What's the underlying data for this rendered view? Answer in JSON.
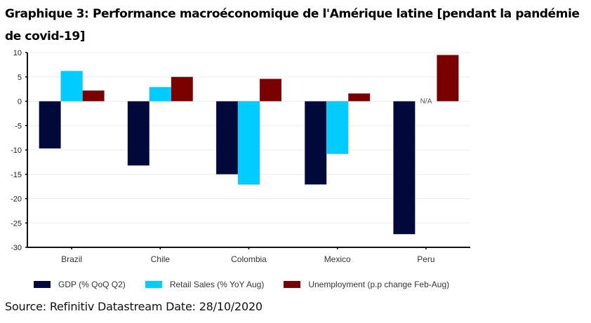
{
  "title": "Graphique 3: Performance macroéconomique de l'Amérique latine [pendant la pandémie de covid-19]",
  "source": "Source: Refinitiv Datastream Date: 28/10/2020",
  "chart_data": {
    "type": "bar",
    "title": "Graphique 3: Performance macroéconomique de l'Amérique latine [pendant la pandémie de covid-19]",
    "xlabel": "",
    "ylabel": "",
    "ylim": [
      -30,
      10
    ],
    "yticks": [
      10,
      5,
      0,
      -5,
      -10,
      -15,
      -20,
      -25,
      -30
    ],
    "grid": true,
    "legend_position": "bottom",
    "categories": [
      "Brazil",
      "Chile",
      "Colombia",
      "Mexico",
      "Peru"
    ],
    "series": [
      {
        "name": "GDP (% QoQ Q2)",
        "color": "#000A3A",
        "values": [
          -9.7,
          -13.2,
          -15.0,
          -17.1,
          -27.3
        ]
      },
      {
        "name": "Retail Sales (% YoY Aug)",
        "color": "#00CCFF",
        "values": [
          6.2,
          2.9,
          -17.1,
          -10.8,
          null
        ]
      },
      {
        "name": "Unemployment (p.p change Feb-Aug)",
        "color": "#7A0000",
        "values": [
          2.2,
          5.0,
          4.6,
          1.6,
          9.5
        ]
      }
    ],
    "annotations": [
      {
        "category": "Peru",
        "series": "Retail Sales (% YoY Aug)",
        "text": "N/A"
      }
    ]
  }
}
